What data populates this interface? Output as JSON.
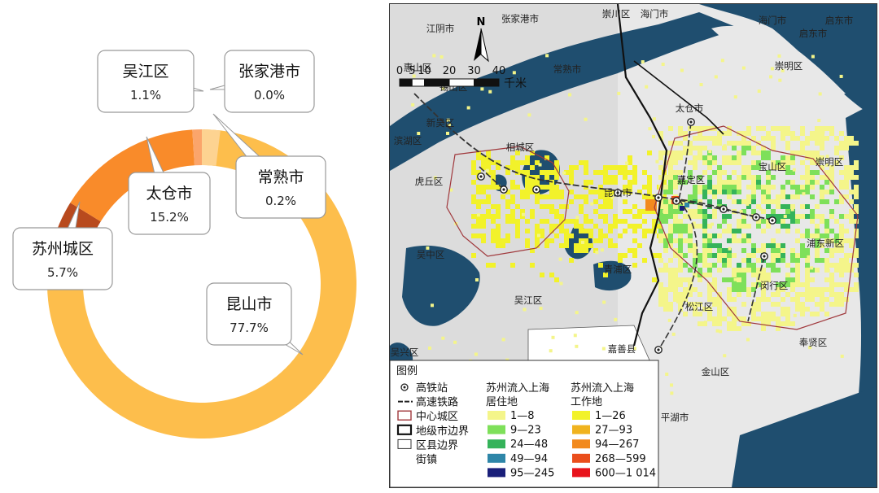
{
  "chart_data": [
    {
      "type": "pie",
      "title": "",
      "categories": [
        "昆山市",
        "太仓市",
        "苏州城区",
        "吴江区",
        "常熟市",
        "张家港市"
      ],
      "values": [
        77.7,
        15.2,
        5.7,
        1.1,
        0.2,
        0.0
      ],
      "labels": [
        "77.7%",
        "15.2%",
        "5.7%",
        "1.1%",
        "0.2%",
        "0.0%"
      ],
      "colors": [
        "#FDBE4C",
        "#F98B2A",
        "#B84A1E",
        "#FBA56B",
        "#E0421F",
        "#FDD391"
      ]
    },
    {
      "type": "table",
      "title": "图例",
      "point_symbols": [
        {
          "label": "高铁站",
          "icon": "station-dot-icon"
        },
        {
          "label": "高速铁路",
          "icon": "railway-line-icon"
        },
        {
          "label": "中心城区",
          "icon": "red-outline-icon"
        },
        {
          "label": "地级市边界",
          "icon": "thick-outline-icon"
        },
        {
          "label": "区县边界",
          "icon": "thin-outline-icon"
        },
        {
          "label": "街镇",
          "icon": "blank-icon"
        }
      ],
      "residence_title": [
        "苏州流入上海",
        "居住地"
      ],
      "residence_classes": [
        {
          "label": "1—8",
          "color": "#F4F58A"
        },
        {
          "label": "9—23",
          "color": "#7EE05A"
        },
        {
          "label": "24—48",
          "color": "#35B35A"
        },
        {
          "label": "49—94",
          "color": "#2E86A8"
        },
        {
          "label": "95—245",
          "color": "#1A1F7A"
        }
      ],
      "work_title": [
        "苏州流入上海",
        "工作地"
      ],
      "work_classes": [
        {
          "label": "1—26",
          "color": "#F2F22A"
        },
        {
          "label": "27—93",
          "color": "#F0B31E"
        },
        {
          "label": "94—267",
          "color": "#F28A1E"
        },
        {
          "label": "268—599",
          "color": "#EA4E1C"
        },
        {
          "label": "600—1 014",
          "color": "#E8131C"
        }
      ]
    }
  ],
  "map": {
    "scale_numbers": [
      "0",
      "5",
      "10",
      "20",
      "30",
      "40"
    ],
    "scale_unit": "千米",
    "north": "N",
    "places": [
      "崇川区",
      "海门市",
      "江阴市",
      "张家港市",
      "海门市",
      "启东市",
      "启东市",
      "崇明区",
      "惠山区",
      "锡山区",
      "常熟市",
      "太仓市",
      "新吴区",
      "滨湖区",
      "相城区",
      "嘉定区",
      "宝山区",
      "崇明区",
      "虎丘区",
      "昆山市",
      "吴中区",
      "青浦区",
      "浦东新区",
      "闵行区",
      "吴江区",
      "松江区",
      "奉贤区",
      "吴兴区",
      "嘉善县",
      "金山区",
      "平湖市"
    ]
  },
  "colors": {
    "water": "#1F4E6F",
    "land": "#dcdcdc",
    "urban_boundary": "#a0383c"
  }
}
